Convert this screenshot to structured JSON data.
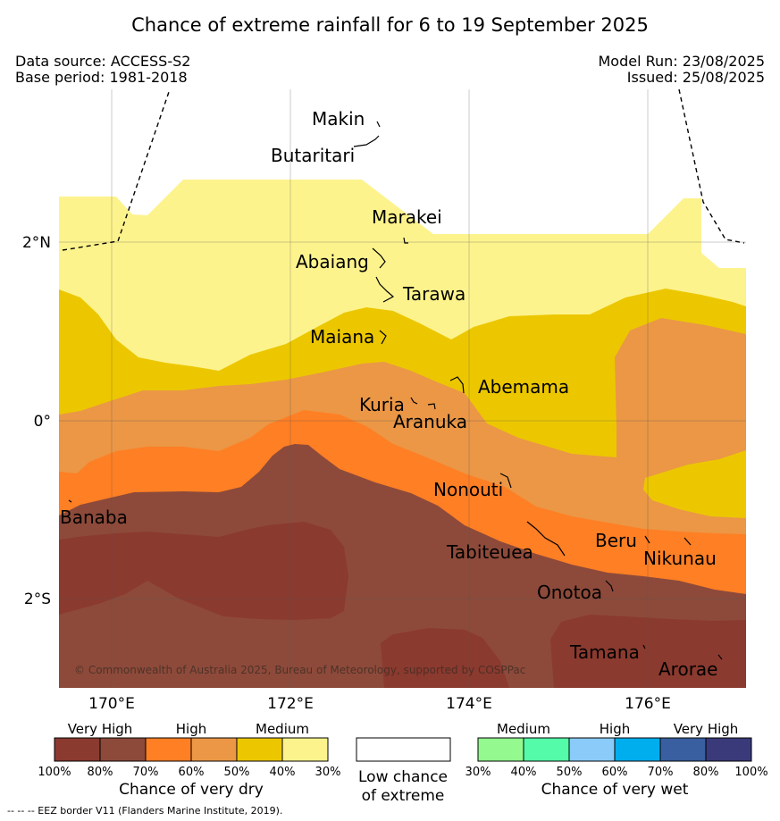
{
  "title": "Chance of extreme rainfall for 6 to 19 September 2025",
  "meta": {
    "data_source": "Data source: ACCESS-S2",
    "base_period": "Base period: 1981-2018",
    "model_run": "Model Run: 23/08/2025",
    "issued": "Issued: 25/08/2025"
  },
  "map": {
    "lon_ticks": [
      "170°E",
      "172°E",
      "174°E",
      "176°E"
    ],
    "lat_ticks": [
      "2°N",
      "0°",
      "2°S"
    ],
    "places": [
      "Makin",
      "Butaritari",
      "Marakei",
      "Abaiang",
      "Tarawa",
      "Maiana",
      "Abemama",
      "Kuria",
      "Aranuka",
      "Nonouti",
      "Banaba",
      "Tabiteuea",
      "Beru",
      "Nikunau",
      "Onotoa",
      "Tamana",
      "Arorae"
    ],
    "copyright": "© Commonwealth of Australia 2025, Bureau of Meteorology, supported by COSPPac",
    "colors": {
      "very_high_dry": "#8b3a2f",
      "dry_80_70": "#8d4a3a",
      "high_dry_70_60": "#ff7f24",
      "high_dry_60_50": "#eb9746",
      "medium_dry_50_40": "#ecc700",
      "medium_dry_40_30": "#fdf38d"
    }
  },
  "legend": {
    "dry": {
      "captions": [
        "Very High",
        "High",
        "Medium"
      ],
      "ticks": [
        "100%",
        "80%",
        "70%",
        "60%",
        "50%",
        "40%",
        "30%"
      ],
      "colors": [
        "#8b3a2f",
        "#8d4a3a",
        "#ff7f24",
        "#eb9746",
        "#ecc700",
        "#fdf38d"
      ],
      "title": "Chance of very dry"
    },
    "neutral": {
      "title_line1": "Low chance",
      "title_line2": "of extreme"
    },
    "wet": {
      "captions": [
        "Medium",
        "High",
        "Very High"
      ],
      "ticks": [
        "30%",
        "40%",
        "50%",
        "60%",
        "70%",
        "80%",
        "100%"
      ],
      "colors": [
        "#94fa90",
        "#54fba8",
        "#8acbfa",
        "#00aeed",
        "#3a5fa0",
        "#3a3a7a"
      ],
      "title": "Chance of very wet"
    }
  },
  "footer": "--  --  -- EEZ border V11 (Flanders Marine Institute, 2019)."
}
